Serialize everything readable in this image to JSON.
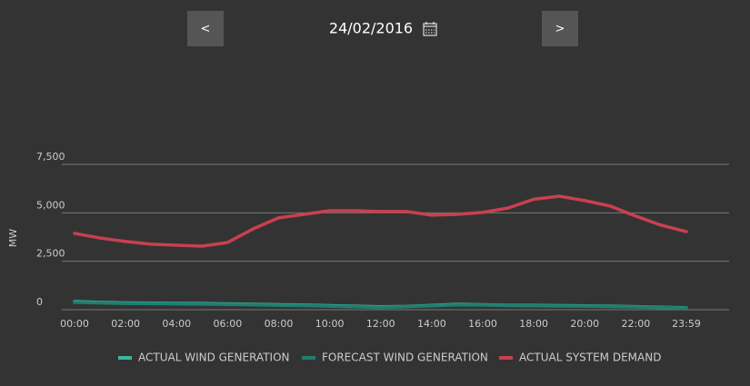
{
  "nav": {
    "prev": "<",
    "next": ">",
    "date": "24/02/2016"
  },
  "chart_data": {
    "type": "line",
    "ylabel": "MW",
    "x": [
      0,
      1,
      2,
      3,
      4,
      5,
      6,
      7,
      8,
      9,
      10,
      11,
      12,
      13,
      14,
      15,
      16,
      17,
      18,
      19,
      20,
      21,
      22,
      23,
      23.983
    ],
    "xlim": [
      0,
      23.983
    ],
    "xticks": [
      {
        "value": 0,
        "label": "00:00"
      },
      {
        "value": 2,
        "label": "02:00"
      },
      {
        "value": 4,
        "label": "04:00"
      },
      {
        "value": 6,
        "label": "06:00"
      },
      {
        "value": 8,
        "label": "08:00"
      },
      {
        "value": 10,
        "label": "10:00"
      },
      {
        "value": 12,
        "label": "12:00"
      },
      {
        "value": 14,
        "label": "14:00"
      },
      {
        "value": 16,
        "label": "16:00"
      },
      {
        "value": 18,
        "label": "18:00"
      },
      {
        "value": 20,
        "label": "20:00"
      },
      {
        "value": 22,
        "label": "22:00"
      },
      {
        "value": 23.983,
        "label": "23:59"
      }
    ],
    "ylim": [
      0,
      7500
    ],
    "yticks": [
      0,
      {
        "value": 2500,
        "label": "2,500"
      },
      {
        "value": 5000,
        "label": "5,000"
      },
      {
        "value": 7500,
        "label": "7,500"
      }
    ],
    "grid": true,
    "series": [
      {
        "name": "ACTUAL WIND GENERATION",
        "color": "#3bb5a0",
        "values": [
          420,
          380,
          350,
          340,
          330,
          320,
          300,
          280,
          260,
          240,
          210,
          180,
          150,
          170,
          220,
          280,
          260,
          230,
          220,
          210,
          200,
          180,
          160,
          130,
          100
        ]
      },
      {
        "name": "FORECAST WIND GENERATION",
        "color": "#1f7f6e",
        "values": [
          380,
          350,
          320,
          310,
          300,
          290,
          270,
          250,
          230,
          210,
          180,
          150,
          120,
          150,
          200,
          250,
          240,
          210,
          200,
          190,
          180,
          160,
          140,
          110,
          80
        ]
      },
      {
        "name": "ACTUAL SYSTEM DEMAND",
        "color": "#c94050",
        "values": [
          3940,
          3700,
          3520,
          3380,
          3330,
          3280,
          3470,
          4170,
          4740,
          4920,
          5110,
          5110,
          5070,
          5070,
          4880,
          4920,
          5020,
          5250,
          5700,
          5860,
          5630,
          5350,
          4830,
          4360,
          4030
        ]
      }
    ]
  }
}
